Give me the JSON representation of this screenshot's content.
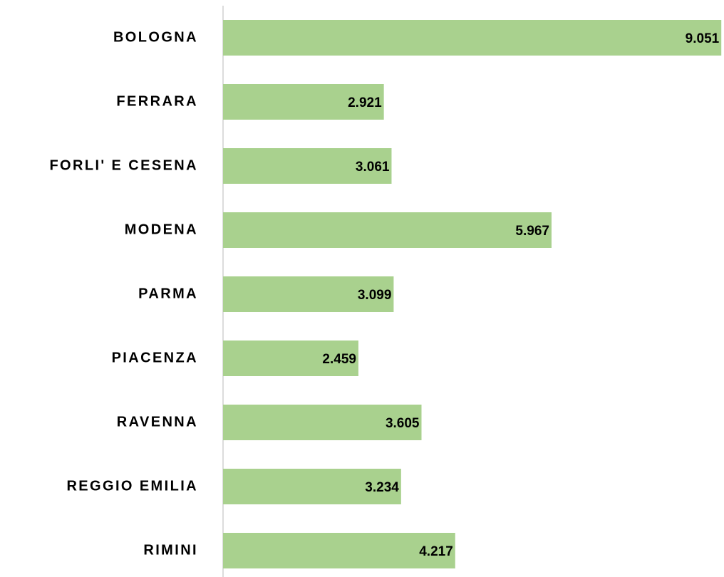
{
  "chart_data": {
    "type": "bar",
    "orientation": "horizontal",
    "categories": [
      "BOLOGNA",
      "FERRARA",
      "FORLI' E CESENA",
      "MODENA",
      "PARMA",
      "PIACENZA",
      "RAVENNA",
      "REGGIO EMILIA",
      "RIMINI"
    ],
    "values": [
      9051,
      2921,
      3061,
      5967,
      3099,
      2459,
      3605,
      3234,
      4217
    ],
    "value_labels": [
      "9.051",
      "2.921",
      "3.061",
      "5.967",
      "3.099",
      "2.459",
      "3.605",
      "3.234",
      "4.217"
    ],
    "color": "#a9d18e",
    "xlim": [
      0,
      9100
    ]
  }
}
